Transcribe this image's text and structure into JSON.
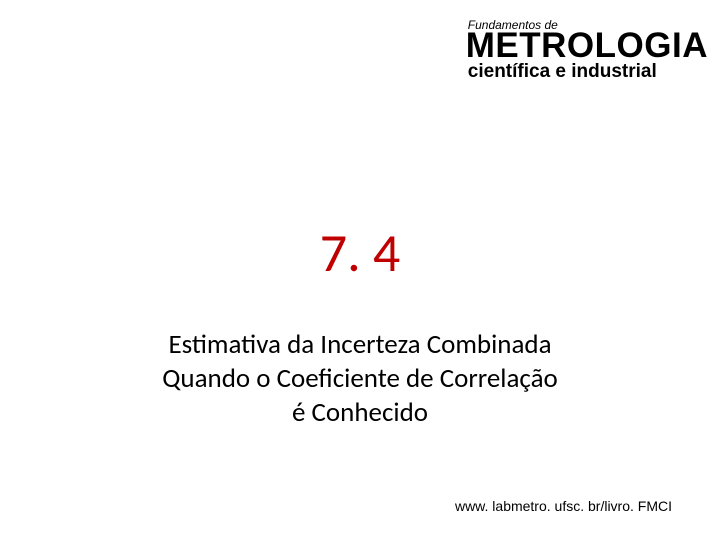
{
  "header": {
    "line1": "Fundamentos de",
    "line2": "METROLOGIA",
    "line3": "científica e industrial"
  },
  "section_number": "7. 4",
  "subtitle_line1": "Estimativa da Incerteza Combinada",
  "subtitle_line2": "Quando o Coeficiente de Correlação",
  "subtitle_line3": "é Conhecido",
  "footer": "www. labmetro. ufsc. br/livro. FMCI",
  "colors": {
    "section_number": "#c00000",
    "text": "#000000",
    "background": "#ffffff"
  },
  "fonts": {
    "header_line1_size": 12,
    "header_line2_size": 35,
    "header_line3_size": 19,
    "section_number_size": 54,
    "subtitle_size": 27,
    "footer_size": 14
  }
}
